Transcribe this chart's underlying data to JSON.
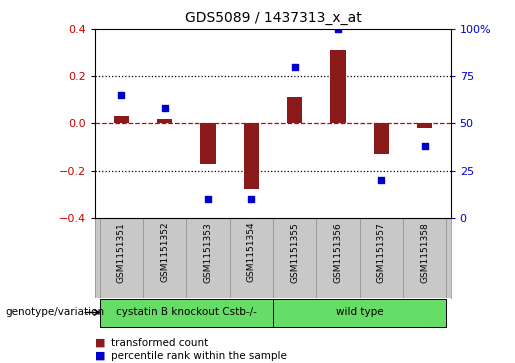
{
  "title": "GDS5089 / 1437313_x_at",
  "samples": [
    "GSM1151351",
    "GSM1151352",
    "GSM1151353",
    "GSM1151354",
    "GSM1151355",
    "GSM1151356",
    "GSM1151357",
    "GSM1151358"
  ],
  "transformed_count": [
    0.03,
    0.02,
    -0.17,
    -0.28,
    0.11,
    0.31,
    -0.13,
    -0.02
  ],
  "percentile_rank": [
    65,
    58,
    10,
    10,
    80,
    100,
    20,
    38
  ],
  "ylim_left": [
    -0.4,
    0.4
  ],
  "ylim_right": [
    0,
    100
  ],
  "left_yticks": [
    -0.4,
    -0.2,
    0.0,
    0.2,
    0.4
  ],
  "right_yticks": [
    0,
    25,
    50,
    75,
    100
  ],
  "right_yticklabels": [
    "0",
    "25",
    "50",
    "75",
    "100%"
  ],
  "bar_color": "#8B1A1A",
  "scatter_color": "#0000CC",
  "zero_line_color": "#CC0000",
  "grid_color": "#000000",
  "plot_bg_color": "#FFFFFF",
  "sample_label_bg": "#C8C8C8",
  "group1_label": "cystatin B knockout Cstb-/-",
  "group2_label": "wild type",
  "group1_indices": [
    0,
    1,
    2,
    3
  ],
  "group2_indices": [
    4,
    5,
    6,
    7
  ],
  "group_color": "#66DD66",
  "group_border_color": "#000000",
  "genotype_label": "genotype/variation",
  "legend_red": "transformed count",
  "legend_blue": "percentile rank within the sample",
  "bar_width": 0.35
}
